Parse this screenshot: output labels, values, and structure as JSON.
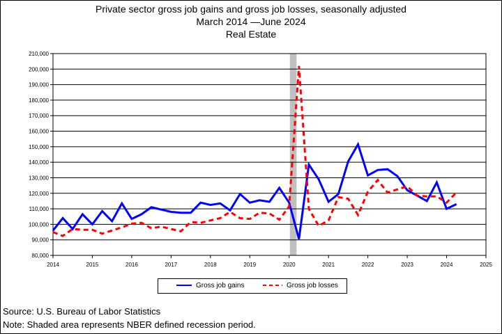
{
  "titles": {
    "line1": "Private sector gross job gains and gross job losses, seasonally adjusted",
    "line2": "March 2014 —June 2024",
    "line3": "Real Estate"
  },
  "legend": {
    "gains_label": "Gross job gains",
    "losses_label": "Gross job losses"
  },
  "footer": {
    "source": "Source: U.S. Bureau of Labor Statistics",
    "note": "Note: Shaded area represents NBER defined recession period."
  },
  "chart_data": {
    "type": "line",
    "xlim": [
      2014,
      2025
    ],
    "ylim": [
      80000,
      210000
    ],
    "x_ticks": [
      "2014",
      "2015",
      "2016",
      "2017",
      "2018",
      "2019",
      "2020",
      "2021",
      "2022",
      "2023",
      "2024",
      "2025"
    ],
    "y_ticks": [
      "80,000",
      "90,000",
      "100,000",
      "110,000",
      "120,000",
      "130,000",
      "140,000",
      "150,000",
      "160,000",
      "170,000",
      "180,000",
      "190,000",
      "200,000",
      "210,000"
    ],
    "grid": "horizontal",
    "legend_position": "bottom",
    "recession": [
      2020.0,
      2020.17
    ],
    "colors": {
      "gains": "#0000ff",
      "losses": "#ff0000",
      "recession": "#c0c0c0"
    },
    "x": [
      2014.0,
      2014.25,
      2014.5,
      2014.75,
      2015.0,
      2015.25,
      2015.5,
      2015.75,
      2016.0,
      2016.25,
      2016.5,
      2016.75,
      2017.0,
      2017.25,
      2017.5,
      2017.75,
      2018.0,
      2018.25,
      2018.5,
      2018.75,
      2019.0,
      2019.25,
      2019.5,
      2019.75,
      2020.0,
      2020.25,
      2020.5,
      2020.75,
      2021.0,
      2021.25,
      2021.5,
      2021.75,
      2022.0,
      2022.25,
      2022.5,
      2022.75,
      2023.0,
      2023.25,
      2023.5,
      2023.75,
      2024.0,
      2024.25
    ],
    "series": [
      {
        "name": "Gross job gains",
        "style": "solid",
        "values": [
          96000,
          104000,
          97000,
          106500,
          100000,
          108500,
          102000,
          113500,
          103500,
          106500,
          111000,
          109500,
          108000,
          107500,
          107500,
          114000,
          112500,
          113500,
          109000,
          119500,
          114000,
          115500,
          114500,
          123500,
          114000,
          90500,
          138500,
          129000,
          114500,
          119500,
          140500,
          151500,
          131500,
          135000,
          135500,
          131000,
          122000,
          118500,
          115000,
          127000,
          110000,
          113000
        ]
      },
      {
        "name": "Gross job losses",
        "style": "dashed",
        "values": [
          95000,
          92500,
          97000,
          96500,
          96500,
          94000,
          96000,
          98000,
          100500,
          101000,
          97500,
          98500,
          97000,
          95500,
          101500,
          101000,
          102500,
          104000,
          108000,
          104000,
          103500,
          107500,
          107000,
          103000,
          111500,
          202000,
          110000,
          99000,
          102500,
          117500,
          116500,
          106000,
          121000,
          128500,
          120500,
          122500,
          124500,
          118500,
          118000,
          118000,
          114000,
          120500
        ]
      }
    ]
  }
}
